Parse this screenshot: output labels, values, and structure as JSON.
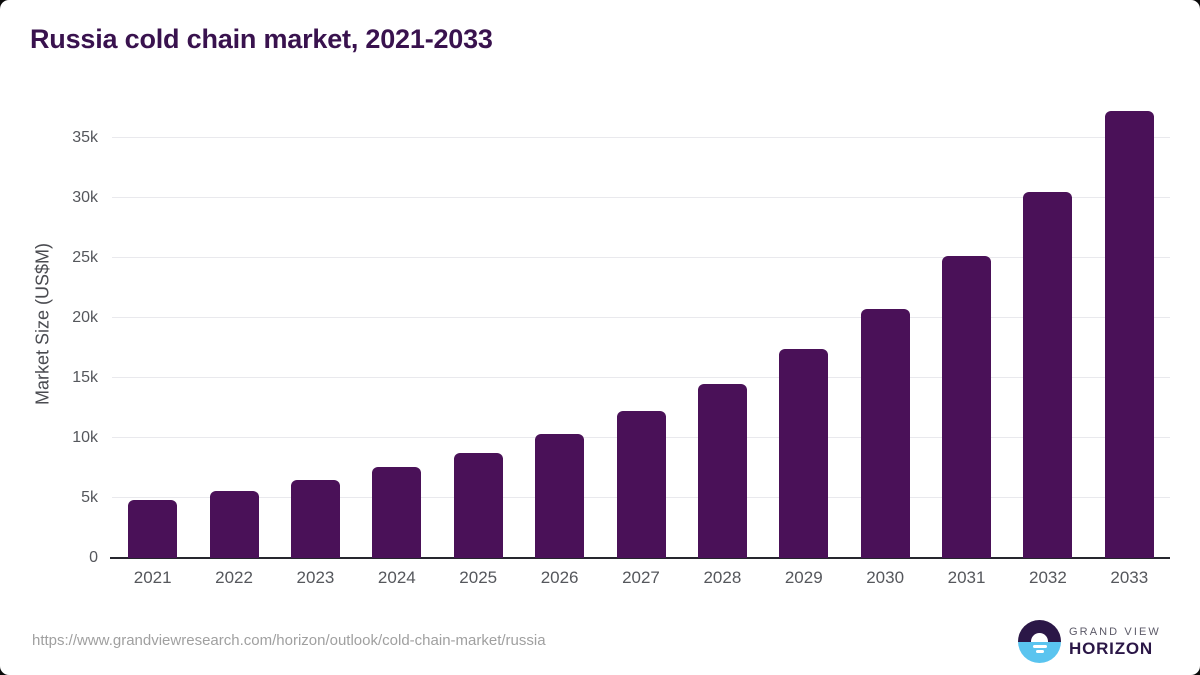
{
  "header": {
    "title": "Russia cold chain market, 2021-2033"
  },
  "chart_data": {
    "type": "bar",
    "title": "Russia cold chain market, 2021-2033",
    "xlabel": "",
    "ylabel": "Market Size (US$M)",
    "categories": [
      "2021",
      "2022",
      "2023",
      "2024",
      "2025",
      "2026",
      "2027",
      "2028",
      "2029",
      "2030",
      "2031",
      "2032",
      "2033"
    ],
    "values": [
      4800,
      5550,
      6500,
      7550,
      8800,
      10350,
      12250,
      14550,
      17400,
      20750,
      25150,
      30500,
      37250
    ],
    "ylim": [
      0,
      38200
    ],
    "yticks": [
      {
        "value": 0,
        "label": "0"
      },
      {
        "value": 5000,
        "label": "5k"
      },
      {
        "value": 10000,
        "label": "10k"
      },
      {
        "value": 15000,
        "label": "15k"
      },
      {
        "value": 20000,
        "label": "20k"
      },
      {
        "value": 25000,
        "label": "25k"
      },
      {
        "value": 30000,
        "label": "30k"
      },
      {
        "value": 35000,
        "label": "35k"
      }
    ],
    "grid": "horizontal",
    "legend": "none",
    "bar_color": "#4a1158"
  },
  "footer": {
    "source_url": "https://www.grandviewresearch.com/horizon/outlook/cold-chain-market/russia",
    "brand": {
      "top": "GRAND VIEW",
      "bottom": "HORIZON"
    }
  },
  "colors": {
    "title": "#39124e",
    "bar": "#4a1158",
    "axis_line": "#26262e",
    "gridline": "#e9e9ed",
    "tick_label": "#55575c",
    "axis_title_label": "#4a4b50",
    "source_url": "#a0a0a0",
    "logo_dark": "#2b1747",
    "logo_blue": "#5ac4ef",
    "logo_gray_text": "#5c5a68"
  }
}
